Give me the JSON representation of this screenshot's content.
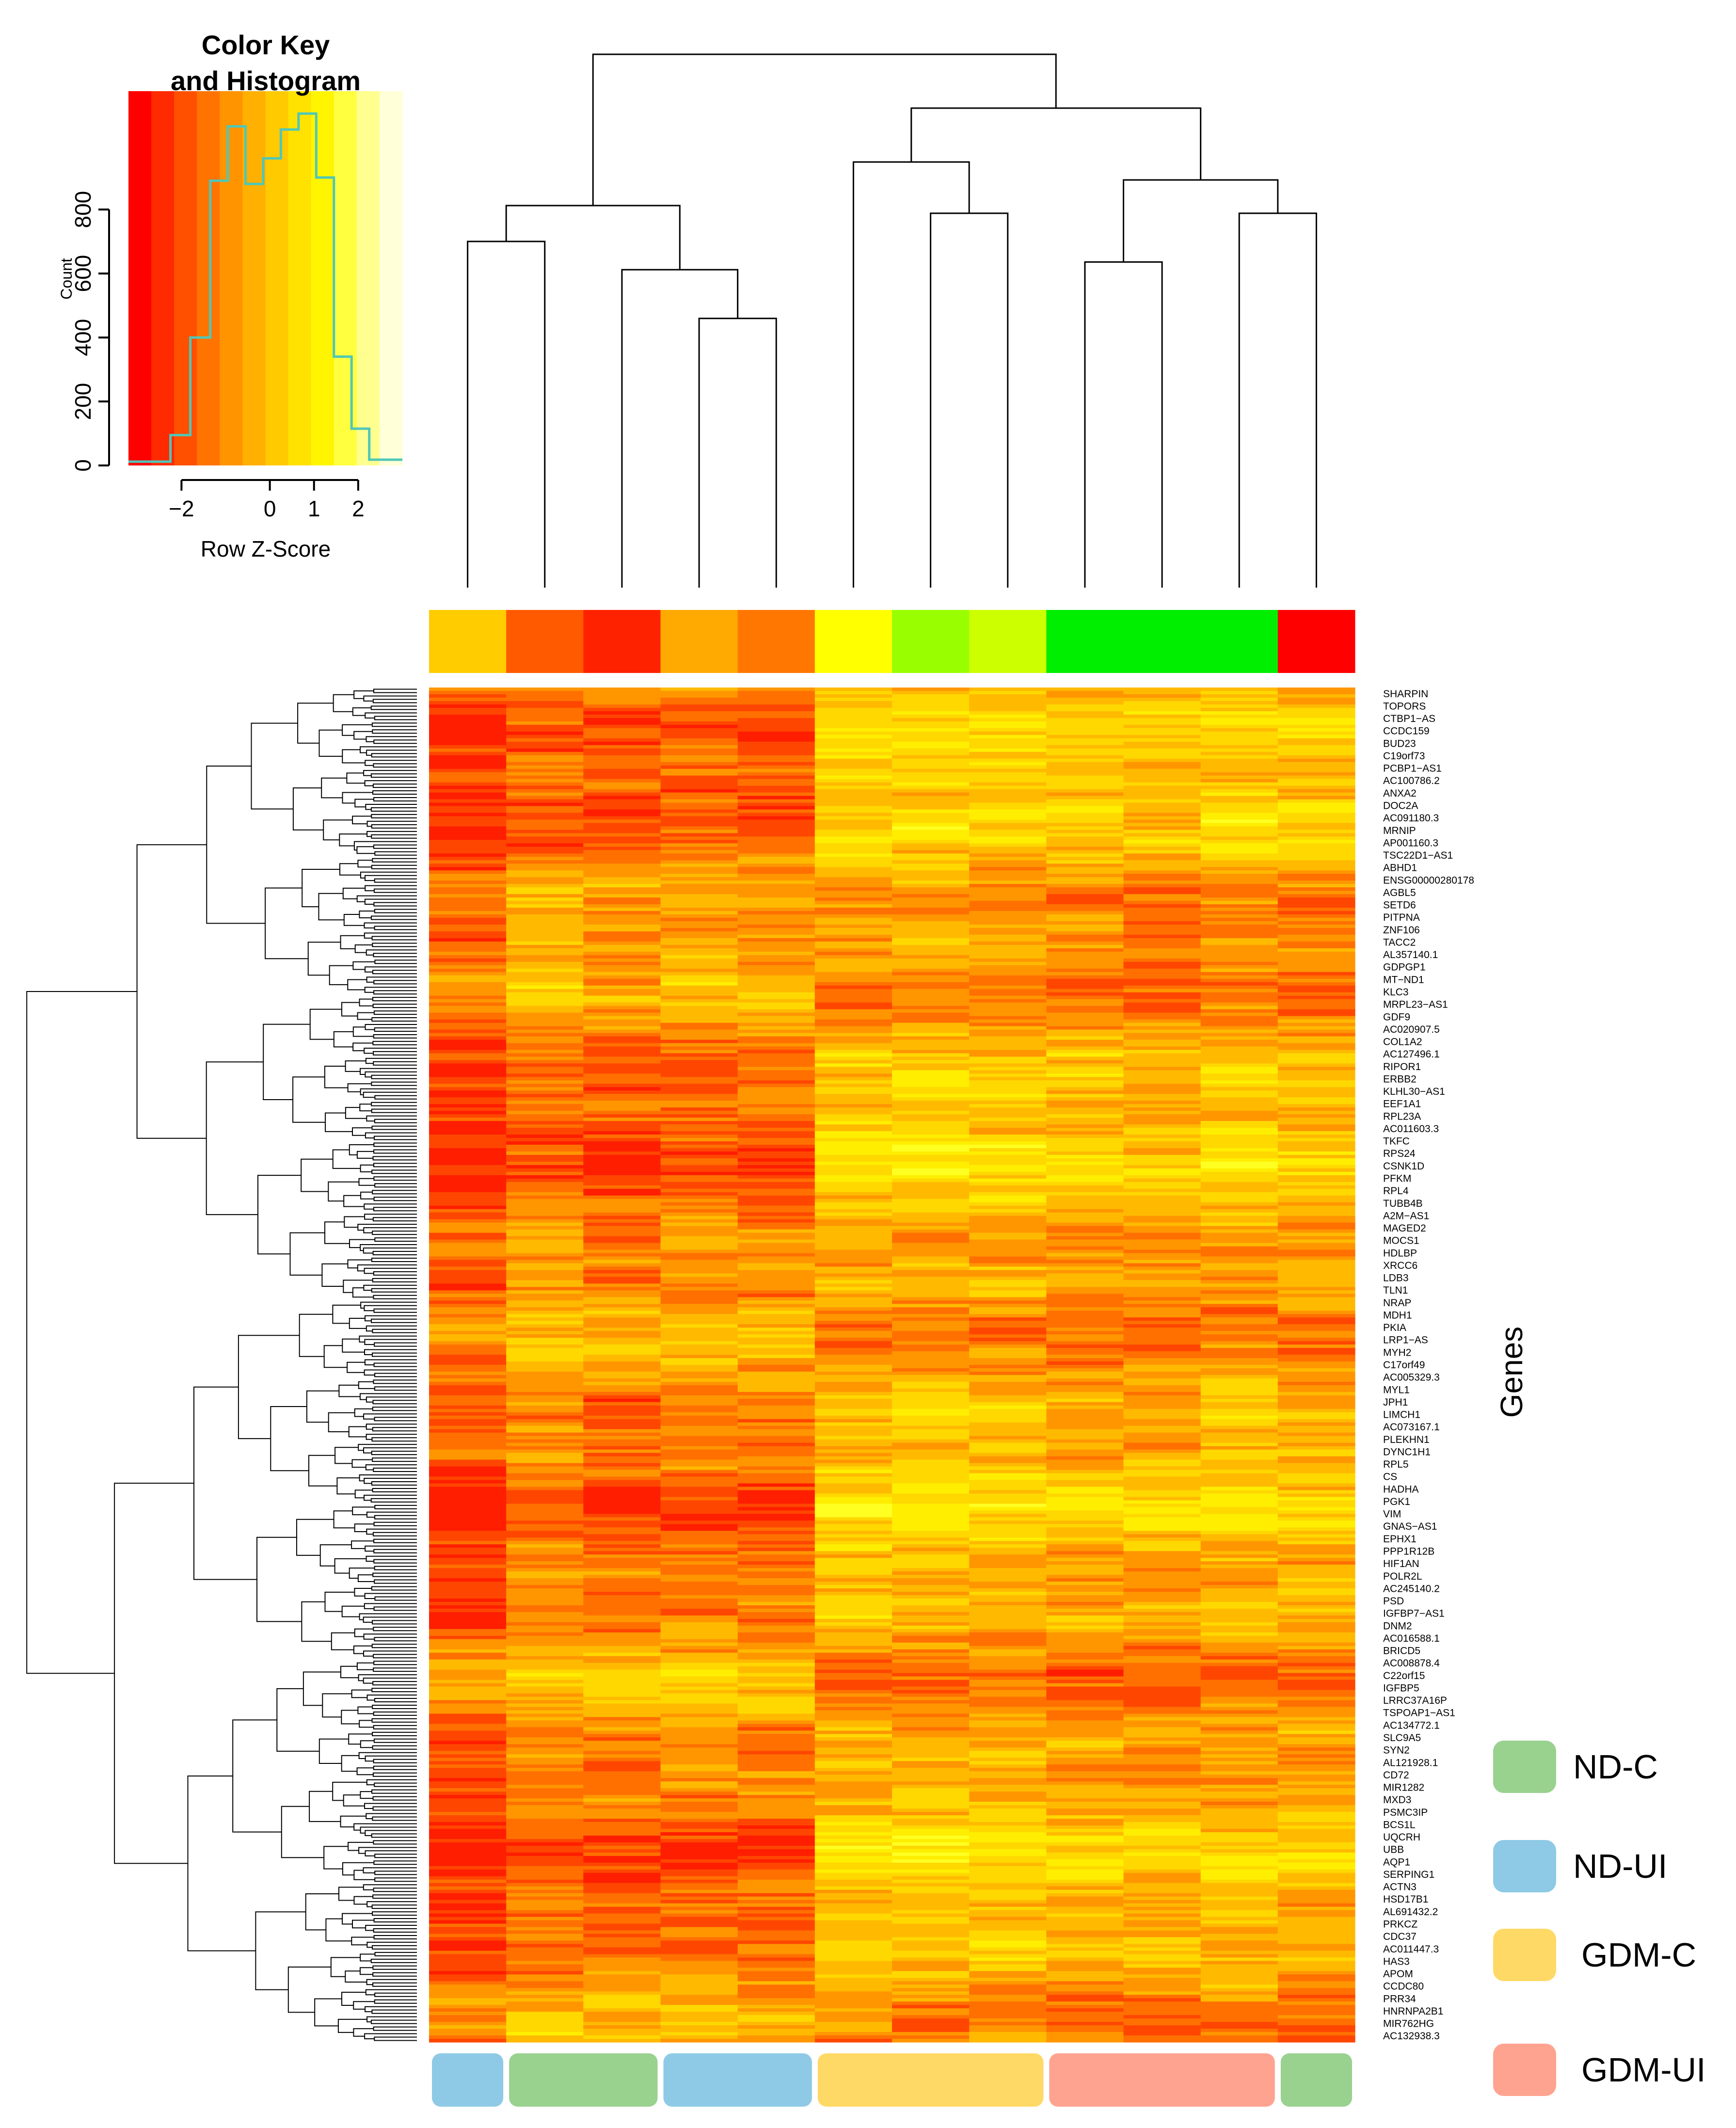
{
  "chart_data": {
    "type": "heatmap",
    "color_key": {
      "title_line1": "Color Key",
      "title_line2": "and Histogram",
      "xlabel": "Row Z-Score",
      "ylabel": "Count",
      "x_ticks": [
        "−2",
        "0",
        "1",
        "2"
      ],
      "x_tick_values": [
        -2,
        0,
        1,
        2
      ],
      "y_ticks": [
        "0",
        "200",
        "400",
        "600",
        "800"
      ],
      "y_tick_values": [
        0,
        200,
        400,
        600,
        800
      ],
      "xlim": [
        -3.2,
        3.0
      ],
      "ylim": [
        0,
        1170
      ],
      "color_scale": [
        "#ff0000",
        "#ff2a00",
        "#ff5000",
        "#ff7400",
        "#ff9400",
        "#ffb000",
        "#ffca00",
        "#ffe200",
        "#fff500",
        "#ffff40",
        "#ffff90",
        "#ffffd8"
      ],
      "histogram_color": "#4fc7b8",
      "histogram_bins": [
        {
          "x0": -3.2,
          "x1": -2.25,
          "count": 12
        },
        {
          "x0": -2.25,
          "x1": -1.8,
          "count": 95
        },
        {
          "x0": -1.8,
          "x1": -1.35,
          "count": 400
        },
        {
          "x0": -1.35,
          "x1": -0.95,
          "count": 890
        },
        {
          "x0": -0.95,
          "x1": -0.55,
          "count": 1060
        },
        {
          "x0": -0.55,
          "x1": -0.15,
          "count": 880
        },
        {
          "x0": -0.15,
          "x1": 0.25,
          "count": 960
        },
        {
          "x0": 0.25,
          "x1": 0.65,
          "count": 1050
        },
        {
          "x0": 0.65,
          "x1": 1.05,
          "count": 1100
        },
        {
          "x0": 1.05,
          "x1": 1.45,
          "count": 900
        },
        {
          "x0": 1.45,
          "x1": 1.85,
          "count": 340
        },
        {
          "x0": 1.85,
          "x1": 2.25,
          "count": 115
        },
        {
          "x0": 2.25,
          "x1": 3.0,
          "count": 18
        }
      ]
    },
    "y_axis_title": "Genes",
    "gene_labels": [
      "SHARPIN",
      "TOPORS",
      "CTBP1−AS",
      "CCDC159",
      "BUD23",
      "C19orf73",
      "PCBP1−AS1",
      "AC100786.2",
      "ANXA2",
      "DOC2A",
      "AC091180.3",
      "MRNIP",
      "AP001160.3",
      "TSC22D1−AS1",
      "ABHD1",
      "ENSG00000280178",
      "AGBL5",
      "SETD6",
      "PITPNA",
      "ZNF106",
      "TACC2",
      "AL357140.1",
      "GDPGP1",
      "MT−ND1",
      "KLC3",
      "MRPL23−AS1",
      "GDF9",
      "AC020907.5",
      "COL1A2",
      "AC127496.1",
      "RIPOR1",
      "ERBB2",
      "KLHL30−AS1",
      "EEF1A1",
      "RPL23A",
      "AC011603.3",
      "TKFC",
      "RPS24",
      "CSNK1D",
      "PFKM",
      "RPL4",
      "TUBB4B",
      "A2M−AS1",
      "MAGED2",
      "MOCS1",
      "HDLBP",
      "XRCC6",
      "LDB3",
      "TLN1",
      "NRAP",
      "MDH1",
      "PKIA",
      "LRP1−AS",
      "MYH2",
      "C17orf49",
      "AC005329.3",
      "MYL1",
      "JPH1",
      "LIMCH1",
      "AC073167.1",
      "PLEKHN1",
      "DYNC1H1",
      "RPL5",
      "CS",
      "HADHA",
      "PGK1",
      "VIM",
      "GNAS−AS1",
      "EPHX1",
      "PPP1R12B",
      "HIF1AN",
      "POLR2L",
      "AC245140.2",
      "PSD",
      "IGFBP7−AS1",
      "DNM2",
      "AC016588.1",
      "BRICD5",
      "AC008878.4",
      "C22orf15",
      "IGFBP5",
      "LRRC37A16P",
      "TSPOAP1−AS1",
      "AC134772.1",
      "SLC9A5",
      "SYN2",
      "AL121928.1",
      "CD72",
      "MIR1282",
      "MXD3",
      "PSMC3IP",
      "BCS1L",
      "UQCRH",
      "UBB",
      "AQP1",
      "SERPING1",
      "ACTN3",
      "HSD17B1",
      "AL691432.2",
      "PRKCZ",
      "CDC37",
      "AC011447.3",
      "HAS3",
      "APOM",
      "CCDC80",
      "PRR34",
      "HNRNPA2B1",
      "MIR762HG",
      "AC132938.3"
    ],
    "n_samples": 12,
    "n_gene_rows": 400,
    "sample_cluster_colors": [
      "#ffcc00",
      "#ff5a00",
      "#ff2200",
      "#ffaa00",
      "#ff7700",
      "#ffff00",
      "#99ff00",
      "#ccff00",
      "#00ee00",
      "#00ee00",
      "#00ee00",
      "#ff0000"
    ],
    "group_bar": [
      {
        "group": "ND-UI",
        "samples": 1
      },
      {
        "group": "ND-C",
        "samples": 2
      },
      {
        "group": "ND-UI",
        "samples": 2
      },
      {
        "group": "GDM-C",
        "samples": 3
      },
      {
        "group": "GDM-UI",
        "samples": 3
      },
      {
        "group": "ND-C",
        "samples": 1
      }
    ],
    "legend": [
      {
        "label": "ND-C",
        "color": "#99d18f"
      },
      {
        "label": "ND-UI",
        "color": "#8ecae6"
      },
      {
        "label": "GDM-C",
        "color": "#ffd966"
      },
      {
        "label": "GDM-UI",
        "color": "#ffa391"
      }
    ],
    "heatmap_palette": [
      "#ff1e00",
      "#ff4600",
      "#ff7000",
      "#ff9600",
      "#ffba00",
      "#ffd800",
      "#ffee00",
      "#ffff22",
      "#ffff99"
    ],
    "column_dendrogram": {
      "leaf_order": [
        0,
        1,
        2,
        3,
        4,
        5,
        6,
        7,
        8,
        9,
        10,
        11
      ],
      "merges": [
        {
          "a": "s0",
          "b": "s1",
          "height": 0.135
        },
        {
          "a": "s3",
          "b": "s4",
          "height": 0.105
        },
        {
          "a": "s2",
          "b": "m2",
          "height": 0.124
        },
        {
          "a": "m1",
          "b": "m3",
          "height": 0.149
        },
        {
          "a": "s6",
          "b": "s7",
          "height": 0.146
        },
        {
          "a": "s5",
          "b": "m5",
          "height": 0.166
        },
        {
          "a": "s8",
          "b": "s9",
          "height": 0.127
        },
        {
          "a": "s10",
          "b": "s11",
          "height": 0.146
        },
        {
          "a": "m7",
          "b": "m8",
          "height": 0.159
        },
        {
          "a": "m6",
          "b": "m9",
          "height": 0.187
        },
        {
          "a": "m4",
          "b": "m10",
          "height": 0.208
        }
      ]
    }
  }
}
